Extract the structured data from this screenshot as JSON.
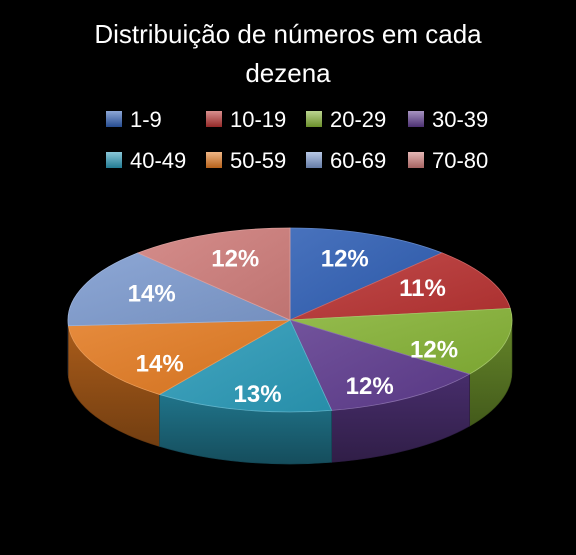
{
  "chart_data": {
    "type": "pie",
    "title_lines": [
      "Distribuição de números em cada",
      "dezena"
    ],
    "categories": [
      "1-9",
      "10-19",
      "20-29",
      "30-39",
      "40-49",
      "50-59",
      "60-69",
      "70-80"
    ],
    "values": [
      12,
      11,
      12,
      12,
      13,
      14,
      14,
      12
    ],
    "data_labels": [
      "12%",
      "11%",
      "12%",
      "12%",
      "13%",
      "14%",
      "14%",
      "12%"
    ],
    "colors": [
      "#2f5fb4",
      "#b93332",
      "#86b336",
      "#5f3c8e",
      "#2a9ab8",
      "#e37b22",
      "#7e9bcf",
      "#cf7d7b"
    ],
    "style": "3d",
    "legend_position": "top",
    "background": "#000000"
  }
}
